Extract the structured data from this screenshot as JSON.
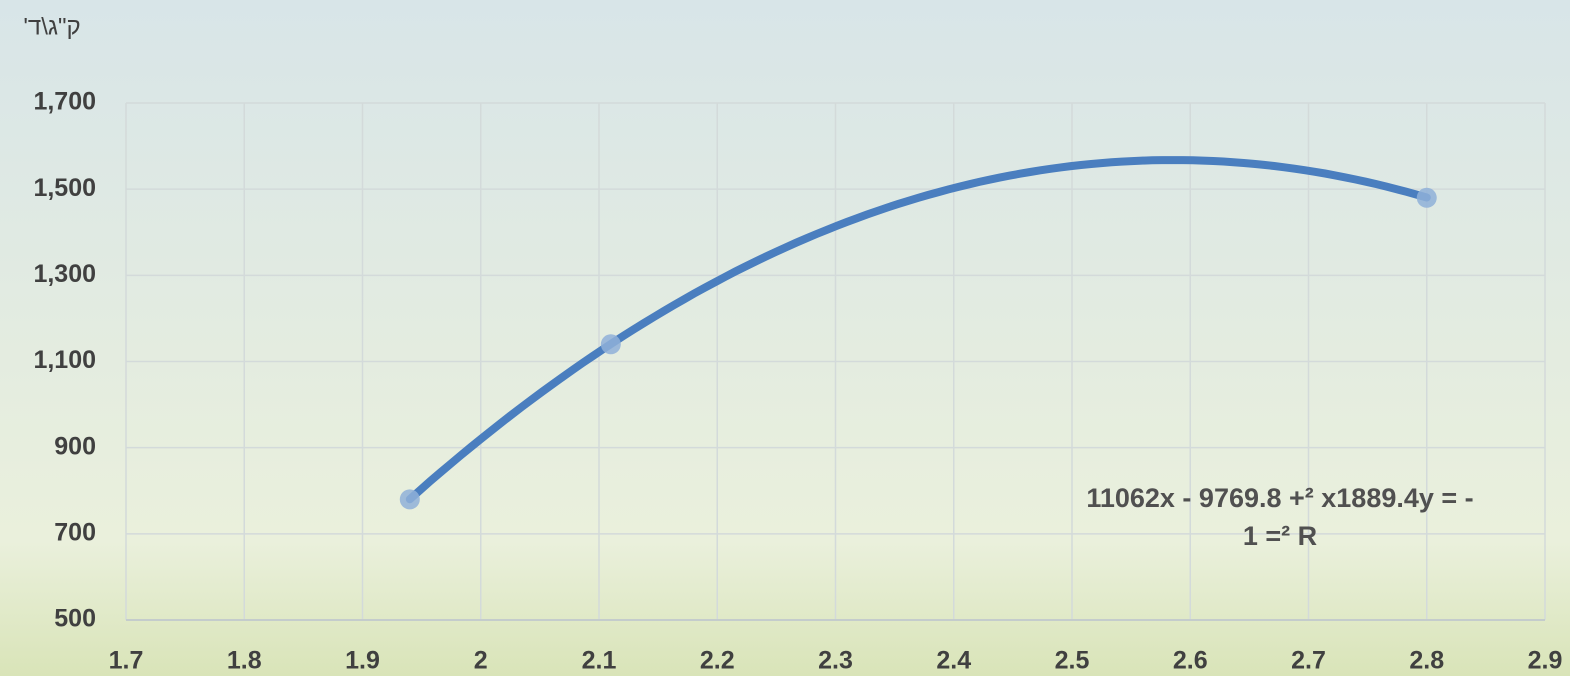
{
  "chart_data": {
    "type": "scatter",
    "y_axis_label": "ק\"ג\\ד'",
    "x": [
      1.94,
      2.11,
      2.8
    ],
    "values": [
      780,
      1140,
      1480
    ],
    "color": "#4a7ebf",
    "point_color": "#8fb0d8",
    "trendline": {
      "type": "polynomial",
      "coefficients": [
        -1889.4,
        9769.8,
        -11062
      ]
    },
    "annotation": [
      "11062x - 9769.8 +² x1889.4y = -",
      "1 =² R"
    ],
    "xlim": [
      1.7,
      2.9
    ],
    "xticks": [
      1.7,
      1.8,
      1.9,
      2,
      2.1,
      2.2,
      2.3,
      2.4,
      2.5,
      2.6,
      2.7,
      2.8,
      2.9
    ],
    "ylim": [
      500,
      1700
    ],
    "yticks": [
      {
        "value": 500,
        "label": "500"
      },
      {
        "value": 700,
        "label": "700"
      },
      {
        "value": 900,
        "label": "900"
      },
      {
        "value": 1100,
        "label": "1,100"
      },
      {
        "value": 1300,
        "label": "1,300"
      },
      {
        "value": 1500,
        "label": "1,500"
      },
      {
        "value": 1700,
        "label": "1,700"
      }
    ],
    "grid": true
  }
}
